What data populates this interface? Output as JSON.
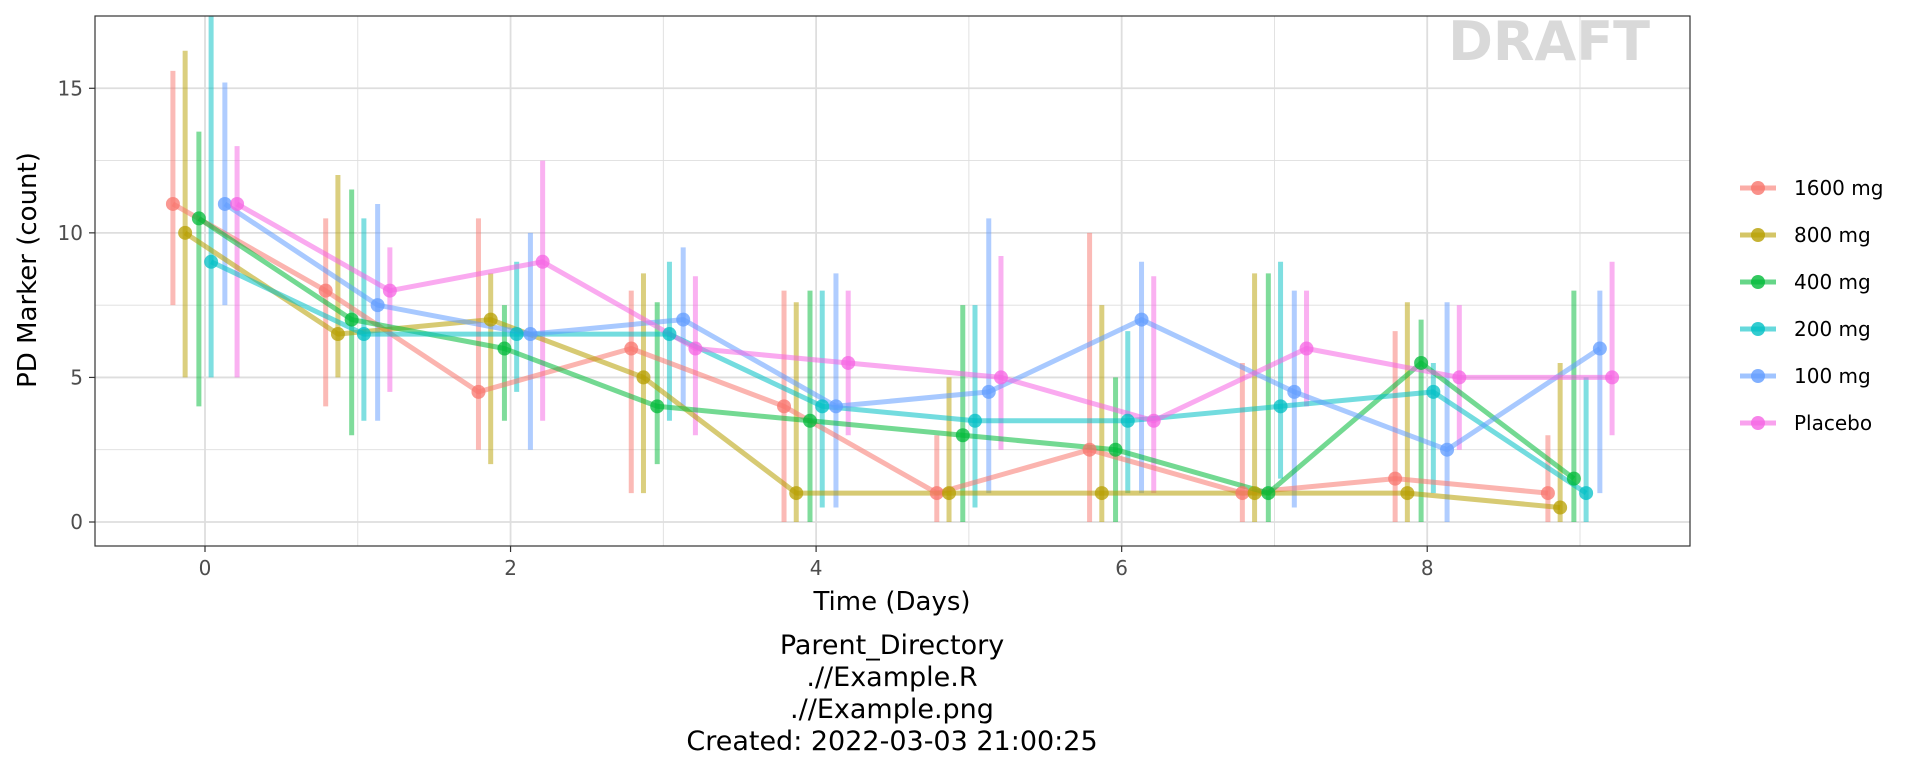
{
  "chart_data": {
    "type": "line",
    "xlabel": "Time (Days)",
    "ylabel": "PD Marker (count)",
    "xlim": [
      -0.72,
      9.72
    ],
    "ylim": [
      -0.83,
      17.5
    ],
    "x_ticks": [
      0,
      2,
      4,
      6,
      8
    ],
    "y_ticks": [
      0,
      5,
      10,
      15
    ],
    "grid": true,
    "legend_position": "right",
    "x": [
      0,
      1,
      2,
      3,
      4,
      5,
      6,
      7,
      8,
      9
    ],
    "watermark": "DRAFT",
    "caption": [
      "Parent_Directory",
      ".//Example.R",
      ".//Example.png",
      "Created: 2022-03-03 21:00:25"
    ],
    "series": [
      {
        "name": "1600 mg",
        "color": "#F8766D",
        "x": [
          -0.21,
          0.79,
          1.79,
          2.79,
          3.79,
          4.79,
          5.79,
          6.79,
          7.79,
          8.79
        ],
        "y": [
          11,
          8,
          4.5,
          6,
          4,
          1,
          2.5,
          1,
          1.5,
          1
        ],
        "lower": [
          7.5,
          4,
          2.5,
          1,
          0,
          0,
          0,
          0,
          0,
          0
        ],
        "upper": [
          15.6,
          10.5,
          10.5,
          8,
          8,
          3,
          10,
          5.5,
          6.6,
          3
        ]
      },
      {
        "name": "800 mg",
        "color": "#B79F00",
        "x": [
          -0.13,
          0.87,
          1.87,
          2.87,
          3.87,
          4.87,
          5.87,
          6.87,
          7.87,
          8.87
        ],
        "y": [
          10,
          6.5,
          7,
          5,
          1,
          1,
          1,
          1,
          1,
          0.5
        ],
        "lower": [
          5,
          5,
          2,
          1,
          0,
          0,
          0,
          0,
          0,
          0
        ],
        "upper": [
          16.3,
          12,
          8.6,
          8.6,
          7.6,
          5,
          7.5,
          8.6,
          7.6,
          5.5
        ]
      },
      {
        "name": "400 mg",
        "color": "#00BA38",
        "x": [
          -0.04,
          0.96,
          1.96,
          2.96,
          3.96,
          4.96,
          5.96,
          6.96,
          7.96,
          8.96
        ],
        "y": [
          10.5,
          7,
          6,
          4,
          3.5,
          3,
          2.5,
          1,
          5.5,
          1.5
        ],
        "lower": [
          4,
          3,
          3.5,
          2,
          0,
          0,
          0,
          0,
          0,
          0
        ],
        "upper": [
          13.5,
          11.5,
          7.5,
          7.6,
          8,
          7.5,
          5,
          8.6,
          7,
          8
        ]
      },
      {
        "name": "200 mg",
        "color": "#00BFC4",
        "x": [
          0.04,
          1.04,
          2.04,
          3.04,
          4.04,
          5.04,
          6.04,
          7.04,
          8.04,
          9.04
        ],
        "y": [
          9,
          6.5,
          6.5,
          6.5,
          4,
          3.5,
          3.5,
          4,
          4.5,
          1
        ],
        "lower": [
          5,
          3.5,
          4.5,
          3.5,
          0.5,
          0.5,
          1,
          1.5,
          1,
          0
        ],
        "upper": [
          17.5,
          10.5,
          9,
          9,
          8,
          7.5,
          6.6,
          9,
          5.5,
          5
        ]
      },
      {
        "name": "100 mg",
        "color": "#619CFF",
        "x": [
          0.13,
          1.13,
          2.13,
          3.13,
          4.13,
          5.13,
          6.13,
          7.13,
          8.13,
          9.13
        ],
        "y": [
          11,
          7.5,
          6.5,
          7,
          4,
          4.5,
          7,
          4.5,
          2.5,
          6
        ],
        "lower": [
          7.5,
          3.5,
          2.5,
          4,
          0.5,
          1,
          1,
          0.5,
          0,
          1
        ],
        "upper": [
          15.2,
          11,
          10,
          9.5,
          8.6,
          10.5,
          9,
          8,
          7.6,
          8
        ]
      },
      {
        "name": "Placebo",
        "color": "#F564E3",
        "x": [
          0.21,
          1.21,
          2.21,
          3.21,
          4.21,
          5.21,
          6.21,
          7.21,
          8.21,
          9.21
        ],
        "y": [
          11,
          8,
          9,
          6,
          5.5,
          5,
          3.5,
          6,
          5,
          5
        ],
        "lower": [
          5,
          4.5,
          3.5,
          3,
          3,
          2.5,
          1,
          4,
          2.5,
          3
        ],
        "upper": [
          13,
          9.5,
          12.5,
          8.5,
          8,
          9.2,
          8.5,
          8,
          7.5,
          9
        ]
      }
    ]
  }
}
